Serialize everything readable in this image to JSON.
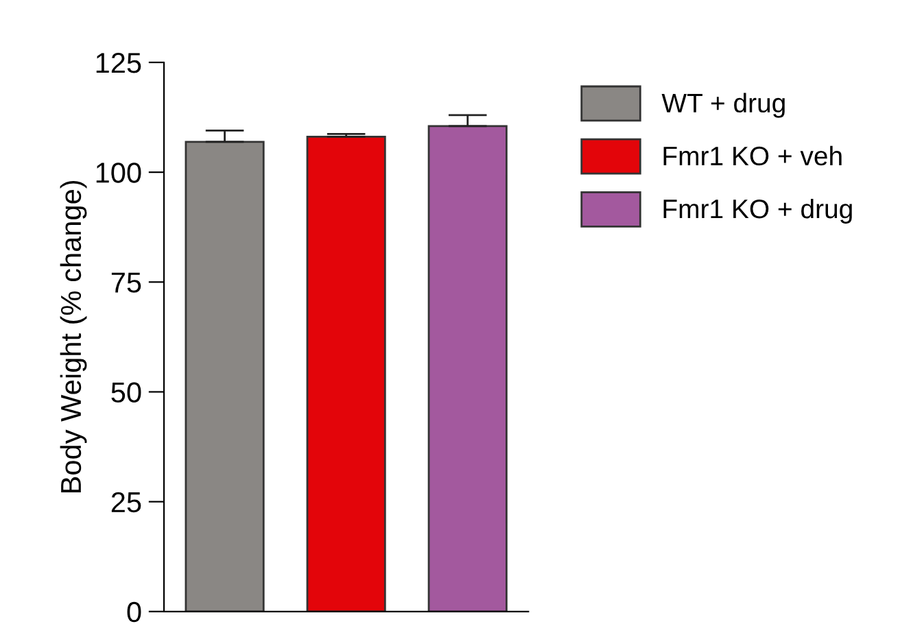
{
  "chart_data": {
    "type": "bar",
    "ylabel": "Body Weight (% change)",
    "categories": [
      null,
      null,
      null
    ],
    "series": [
      {
        "name": "WT + drug",
        "color": "#8a8784",
        "values": [
          106.9,
          null,
          null
        ],
        "errors": [
          [
            106.9,
            109.5
          ],
          null,
          null
        ]
      },
      {
        "name": "Fmr1 KO + veh",
        "color": "#e3050a",
        "values": [
          null,
          108.1,
          null
        ],
        "errors": [
          null,
          [
            108.1,
            108.7
          ],
          null
        ]
      },
      {
        "name": "Fmr1 KO + drug",
        "color": "#a3599e",
        "values": [
          null,
          null,
          110.5
        ],
        "errors": [
          null,
          null,
          [
            110.5,
            113.0
          ]
        ]
      }
    ],
    "ylim": [
      0,
      125
    ],
    "yticks": [
      0,
      25,
      50,
      75,
      100,
      125
    ],
    "grid": false,
    "legend": "top right"
  }
}
